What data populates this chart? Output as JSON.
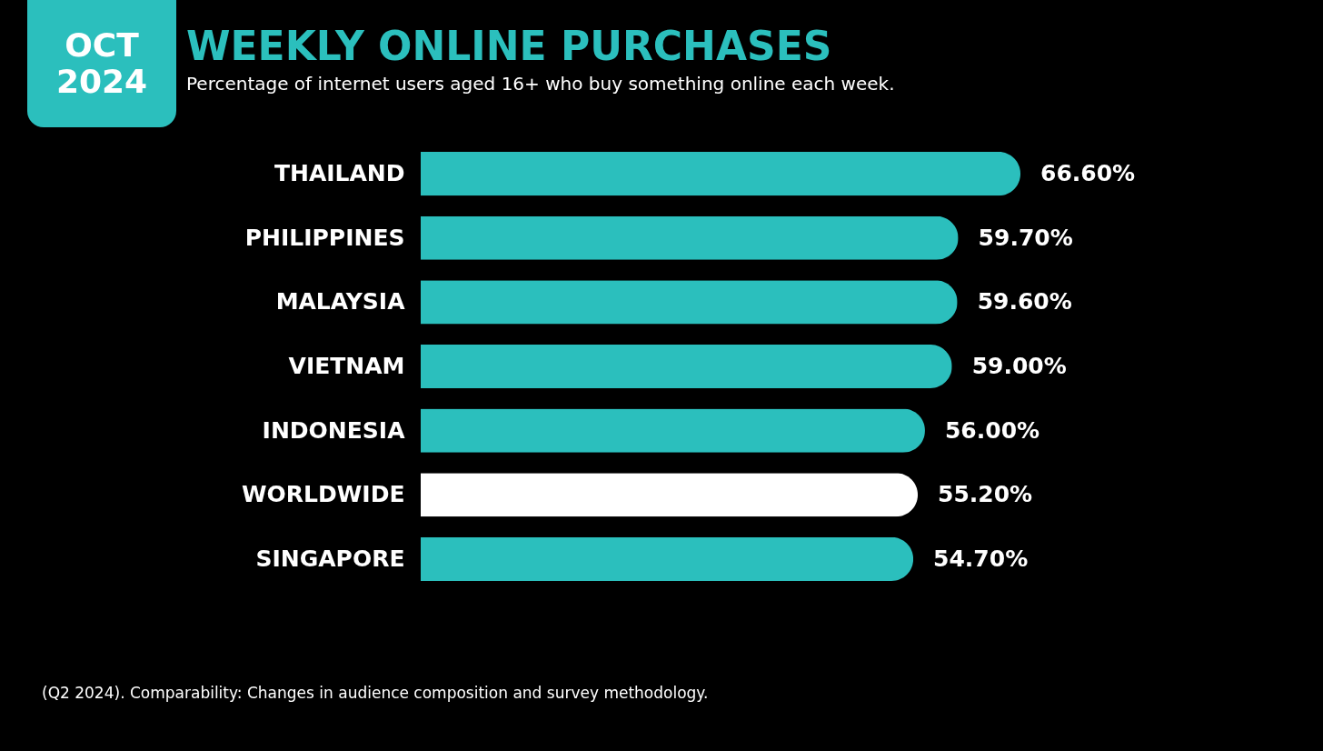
{
  "chart_data": {
    "type": "bar",
    "orientation": "horizontal",
    "title": "WEEKLY ONLINE PURCHASES",
    "subtitle": "Percentage of internet users aged 16+ who buy something online each week.",
    "categories": [
      "THAILAND",
      "PHILIPPINES",
      "MALAYSIA",
      "VIETNAM",
      "INDONESIA",
      "WORLDWIDE",
      "SINGAPORE"
    ],
    "values": [
      66.6,
      59.7,
      59.6,
      59.0,
      56.0,
      55.2,
      54.7
    ],
    "value_labels": [
      "66.60%",
      "59.70%",
      "59.60%",
      "59.00%",
      "56.00%",
      "55.20%",
      "54.70%"
    ],
    "colors": [
      "#2bbfbd",
      "#2bbfbd",
      "#2bbfbd",
      "#2bbfbd",
      "#2bbfbd",
      "#ffffff",
      "#2bbfbd"
    ],
    "annotations": [
      "OCT 2024",
      "(Q2 2024). Comparability: Changes in audience composition and survey methodology."
    ]
  }
}
